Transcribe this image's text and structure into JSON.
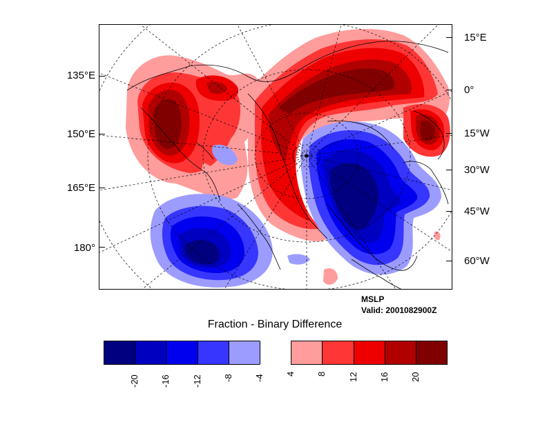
{
  "left_lon_labels": [
    "135°E",
    "150°E",
    "165°E",
    "180°"
  ],
  "right_lon_labels": [
    "15°E",
    "0°",
    "15°W",
    "30°W",
    "45°W",
    "60°W"
  ],
  "info": {
    "field": "MSLP",
    "valid": "Valid: 2001082900Z"
  },
  "colorbar": {
    "title": "Fraction - Binary Difference",
    "colors": [
      "#000080",
      "#0000c0",
      "#0000ee",
      "#3636ff",
      "#9c9cff",
      "#ffffff",
      "#ff9c9c",
      "#ff3636",
      "#ee0000",
      "#b00000",
      "#800000"
    ],
    "labels": [
      "-20",
      "-16",
      "-12",
      "-8",
      "-4",
      "4",
      "8",
      "12",
      "16",
      "20"
    ]
  }
}
